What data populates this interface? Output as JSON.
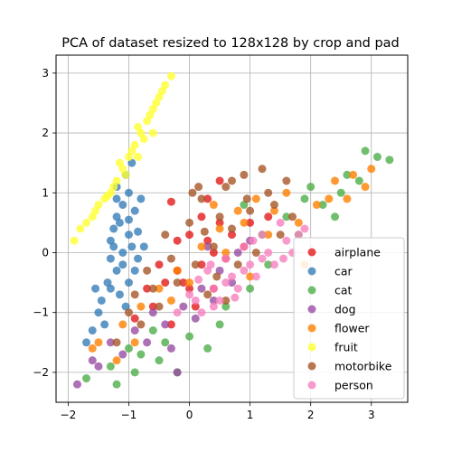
{
  "chart_data": {
    "type": "scatter",
    "title": "PCA of dataset resized to 128x128 by crop and pad",
    "xlabel": "",
    "ylabel": "",
    "xlim": [
      -2.2,
      3.6
    ],
    "ylim": [
      -2.5,
      3.3
    ],
    "xticks": [
      -2,
      -1,
      0,
      1,
      2,
      3
    ],
    "yticks": [
      -2,
      -1,
      0,
      1,
      2,
      3
    ],
    "grid": true,
    "legend_position": "lower-right",
    "point_alpha": 0.8,
    "series": [
      {
        "name": "airplane",
        "color": "#e41a1c",
        "points": [
          [
            -0.9,
            -1.1
          ],
          [
            -0.6,
            -0.9
          ],
          [
            -0.4,
            -0.5
          ],
          [
            -0.2,
            -0.3
          ],
          [
            0.0,
            -0.6
          ],
          [
            0.2,
            -0.2
          ],
          [
            0.3,
            0.2
          ],
          [
            0.5,
            0.5
          ],
          [
            0.1,
            -0.9
          ],
          [
            -0.3,
            -1.2
          ],
          [
            0.4,
            -0.6
          ],
          [
            -0.5,
            -0.2
          ],
          [
            0.7,
            0.3
          ],
          [
            1.0,
            0.5
          ],
          [
            0.2,
            0.6
          ],
          [
            -0.2,
            0.2
          ],
          [
            0.6,
            -0.1
          ],
          [
            -0.7,
            -0.6
          ],
          [
            0.9,
            0.1
          ],
          [
            0.3,
            0.9
          ],
          [
            0.5,
            1.2
          ],
          [
            -0.3,
            0.85
          ],
          [
            1.3,
            0.6
          ],
          [
            0.0,
            0.3
          ],
          [
            -0.1,
            -0.5
          ],
          [
            0.4,
            0.0
          ]
        ]
      },
      {
        "name": "car",
        "color": "#377eb8",
        "points": [
          [
            -1.3,
            -0.6
          ],
          [
            -1.2,
            -0.3
          ],
          [
            -1.1,
            0.0
          ],
          [
            -1.0,
            0.3
          ],
          [
            -1.15,
            0.5
          ],
          [
            -0.9,
            0.7
          ],
          [
            -1.05,
            -0.9
          ],
          [
            -1.4,
            -1.2
          ],
          [
            -1.2,
            0.9
          ],
          [
            -1.25,
            0.1
          ],
          [
            -0.95,
            0.1
          ],
          [
            -1.35,
            -0.5
          ],
          [
            -1.1,
            -0.2
          ],
          [
            -0.85,
            0.35
          ],
          [
            -1.0,
            1.0
          ],
          [
            -1.2,
            0.6
          ],
          [
            -1.5,
            -1.0
          ],
          [
            -1.6,
            -1.3
          ],
          [
            -1.0,
            -0.5
          ],
          [
            -0.8,
            0.9
          ],
          [
            -1.3,
            0.2
          ],
          [
            -1.45,
            -0.8
          ],
          [
            -1.1,
            0.8
          ],
          [
            -0.9,
            -0.3
          ],
          [
            -1.05,
            1.3
          ],
          [
            -0.95,
            1.5
          ],
          [
            -1.7,
            -1.5
          ],
          [
            -1.3,
            -0.1
          ],
          [
            -1.15,
            -0.7
          ],
          [
            -1.0,
            0.55
          ],
          [
            -0.75,
            0.1
          ],
          [
            -1.25,
            0.4
          ],
          [
            -1.55,
            -0.6
          ],
          [
            -0.85,
            -0.1
          ],
          [
            -1.2,
            1.1
          ]
        ]
      },
      {
        "name": "cat",
        "color": "#4daf4a",
        "points": [
          [
            -1.7,
            -2.1
          ],
          [
            -1.2,
            -2.2
          ],
          [
            -0.9,
            -2.0
          ],
          [
            -0.5,
            -1.8
          ],
          [
            -0.2,
            -2.0
          ],
          [
            0.3,
            -1.6
          ],
          [
            -1.0,
            -1.6
          ],
          [
            -0.6,
            -1.3
          ],
          [
            0.5,
            -1.2
          ],
          [
            1.2,
            0.3
          ],
          [
            1.6,
            0.6
          ],
          [
            1.9,
            0.9
          ],
          [
            2.2,
            0.8
          ],
          [
            2.5,
            1.0
          ],
          [
            2.8,
            1.2
          ],
          [
            3.1,
            1.6
          ],
          [
            3.3,
            1.55
          ],
          [
            2.9,
            1.7
          ],
          [
            1.0,
            -0.6
          ],
          [
            0.0,
            -1.4
          ],
          [
            -1.3,
            -1.9
          ],
          [
            1.8,
            0.3
          ],
          [
            2.4,
            0.6
          ],
          [
            -0.4,
            -1.5
          ],
          [
            0.6,
            -0.9
          ],
          [
            2.0,
            1.1
          ],
          [
            1.3,
            -0.2
          ],
          [
            -0.8,
            -1.7
          ],
          [
            0.9,
            0.8
          ],
          [
            2.6,
            1.3
          ]
        ]
      },
      {
        "name": "dog",
        "color": "#984ea3",
        "points": [
          [
            -1.85,
            -2.2
          ],
          [
            -1.5,
            -1.9
          ],
          [
            -1.1,
            -1.7
          ],
          [
            -0.7,
            -1.5
          ],
          [
            -0.4,
            -1.2
          ],
          [
            -0.1,
            -0.9
          ],
          [
            0.2,
            -0.6
          ],
          [
            0.5,
            -0.3
          ],
          [
            0.8,
            0.0
          ],
          [
            1.0,
            0.2
          ],
          [
            -0.9,
            -1.3
          ],
          [
            -0.3,
            -1.6
          ],
          [
            0.1,
            -1.1
          ],
          [
            -1.3,
            -1.5
          ],
          [
            0.4,
            -0.8
          ],
          [
            0.7,
            -0.5
          ],
          [
            -0.6,
            -1.0
          ],
          [
            -1.6,
            -1.8
          ],
          [
            0.3,
            0.1
          ],
          [
            -0.2,
            -2.0
          ]
        ]
      },
      {
        "name": "flower",
        "color": "#ff7f00",
        "points": [
          [
            -1.5,
            -1.5
          ],
          [
            -1.1,
            -1.2
          ],
          [
            -0.8,
            -0.9
          ],
          [
            -0.5,
            -0.6
          ],
          [
            -0.2,
            -0.3
          ],
          [
            0.2,
            0.1
          ],
          [
            0.5,
            0.4
          ],
          [
            0.8,
            0.7
          ],
          [
            1.1,
            0.9
          ],
          [
            1.4,
            0.7
          ],
          [
            1.8,
            0.5
          ],
          [
            2.1,
            0.8
          ],
          [
            2.4,
            1.2
          ],
          [
            2.7,
            1.3
          ],
          [
            3.0,
            1.4
          ],
          [
            2.9,
            1.1
          ],
          [
            1.9,
            -0.2
          ],
          [
            1.3,
            0.3
          ],
          [
            0.6,
            0.0
          ],
          [
            -0.3,
            -0.8
          ],
          [
            -0.9,
            -1.5
          ],
          [
            -1.6,
            -1.6
          ],
          [
            2.3,
            0.9
          ],
          [
            1.6,
            1.0
          ],
          [
            0.9,
            0.5
          ],
          [
            0.0,
            -0.5
          ],
          [
            2.6,
            0.9
          ],
          [
            -1.2,
            -1.8
          ],
          [
            1.0,
            -0.4
          ],
          [
            0.4,
            0.8
          ]
        ]
      },
      {
        "name": "fruit",
        "color": "#ffff33",
        "points": [
          [
            -1.9,
            0.2
          ],
          [
            -1.7,
            0.5
          ],
          [
            -1.5,
            0.8
          ],
          [
            -1.3,
            1.0
          ],
          [
            -1.2,
            1.2
          ],
          [
            -1.1,
            1.4
          ],
          [
            -1.0,
            1.6
          ],
          [
            -0.9,
            1.8
          ],
          [
            -0.8,
            2.0
          ],
          [
            -0.7,
            2.2
          ],
          [
            -0.6,
            2.4
          ],
          [
            -0.5,
            2.6
          ],
          [
            -0.4,
            2.8
          ],
          [
            -0.3,
            2.95
          ],
          [
            -1.4,
            0.9
          ],
          [
            -1.6,
            0.6
          ],
          [
            -1.15,
            1.5
          ],
          [
            -0.95,
            1.7
          ],
          [
            -0.85,
            2.1
          ],
          [
            -0.65,
            2.3
          ],
          [
            -0.55,
            2.5
          ],
          [
            -0.45,
            2.7
          ],
          [
            -1.25,
            1.1
          ],
          [
            -1.05,
            1.3
          ],
          [
            -0.75,
            1.9
          ],
          [
            -1.55,
            0.7
          ],
          [
            -1.35,
            0.95
          ],
          [
            -0.85,
            1.6
          ],
          [
            -0.6,
            2.0
          ],
          [
            -1.8,
            0.4
          ]
        ]
      },
      {
        "name": "motorbike",
        "color": "#a65628",
        "points": [
          [
            -1.2,
            -1.5
          ],
          [
            -0.8,
            -1.2
          ],
          [
            -0.5,
            -0.9
          ],
          [
            -0.2,
            -0.5
          ],
          [
            0.1,
            -0.2
          ],
          [
            0.4,
            0.1
          ],
          [
            0.7,
            0.4
          ],
          [
            1.0,
            0.7
          ],
          [
            1.3,
            1.0
          ],
          [
            1.6,
            1.2
          ],
          [
            0.2,
            0.9
          ],
          [
            0.6,
            1.1
          ],
          [
            0.9,
            1.3
          ],
          [
            1.2,
            1.4
          ],
          [
            -0.4,
            0.3
          ],
          [
            0.0,
            0.5
          ],
          [
            -0.7,
            -0.3
          ],
          [
            0.3,
            -0.7
          ],
          [
            0.8,
            -0.2
          ],
          [
            1.5,
            0.3
          ],
          [
            1.1,
            0.0
          ],
          [
            -0.9,
            -0.7
          ],
          [
            0.5,
            0.6
          ],
          [
            0.05,
            1.0
          ],
          [
            0.7,
            1.2
          ],
          [
            -0.3,
            -0.1
          ],
          [
            0.25,
            0.35
          ],
          [
            1.7,
            0.6
          ],
          [
            -1.0,
            -1.0
          ],
          [
            0.45,
            -0.4
          ],
          [
            1.4,
            0.8
          ],
          [
            0.15,
            1.1
          ],
          [
            -0.6,
            -0.6
          ],
          [
            0.95,
            0.9
          ],
          [
            0.6,
            -0.8
          ]
        ]
      },
      {
        "name": "person",
        "color": "#f781bf",
        "points": [
          [
            -0.2,
            -1.0
          ],
          [
            0.1,
            -0.8
          ],
          [
            0.4,
            -0.6
          ],
          [
            0.7,
            -0.4
          ],
          [
            1.0,
            -0.2
          ],
          [
            1.3,
            0.0
          ],
          [
            1.6,
            0.2
          ],
          [
            1.9,
            0.4
          ],
          [
            0.3,
            -0.3
          ],
          [
            0.6,
            -0.1
          ],
          [
            0.9,
            0.1
          ],
          [
            1.2,
            0.3
          ],
          [
            1.5,
            0.5
          ],
          [
            0.2,
            -1.0
          ],
          [
            0.5,
            -0.8
          ],
          [
            0.8,
            -0.6
          ],
          [
            1.1,
            -0.4
          ],
          [
            1.4,
            -0.2
          ],
          [
            0.0,
            -0.7
          ],
          [
            1.7,
            0.0
          ],
          [
            0.4,
            -0.9
          ],
          [
            0.9,
            -0.3
          ],
          [
            1.2,
            -0.1
          ],
          [
            0.6,
            -0.5
          ],
          [
            1.8,
            0.3
          ],
          [
            0.35,
            -0.2
          ],
          [
            1.05,
            0.2
          ],
          [
            0.75,
            -0.75
          ],
          [
            1.55,
            -0.1
          ],
          [
            0.15,
            -0.45
          ]
        ]
      }
    ]
  }
}
